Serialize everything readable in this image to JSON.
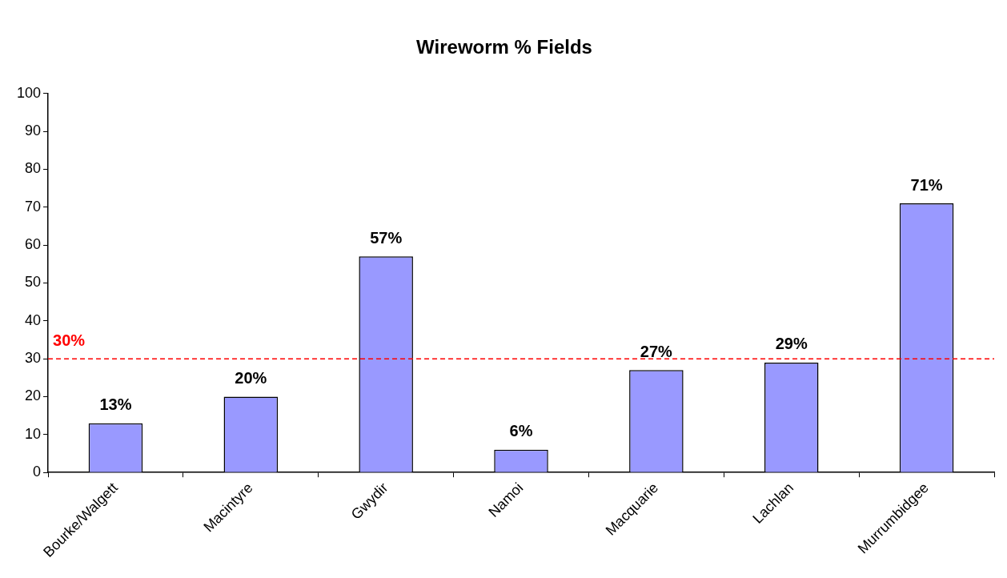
{
  "chart_data": {
    "type": "bar",
    "title": "Wireworm % Fields",
    "categories": [
      "Bourke/Walgett",
      "Macintyre",
      "Gwydir",
      "Namoi",
      "Macquarie",
      "Lachlan",
      "Murrumbidgee"
    ],
    "values": [
      13,
      20,
      57,
      6,
      27,
      29,
      71
    ],
    "value_labels": [
      "13%",
      "20%",
      "57%",
      "6%",
      "27%",
      "29%",
      "71%"
    ],
    "color": "#9999ff",
    "ylim": [
      0,
      100
    ],
    "yticks": [
      0,
      10,
      20,
      30,
      40,
      50,
      60,
      70,
      80,
      90,
      100
    ],
    "grid": false,
    "legend": false,
    "ref_lines": [
      {
        "axis": "y",
        "value": 30,
        "label": "30%",
        "color": "#ff0000",
        "line_style": "dashed"
      }
    ]
  }
}
